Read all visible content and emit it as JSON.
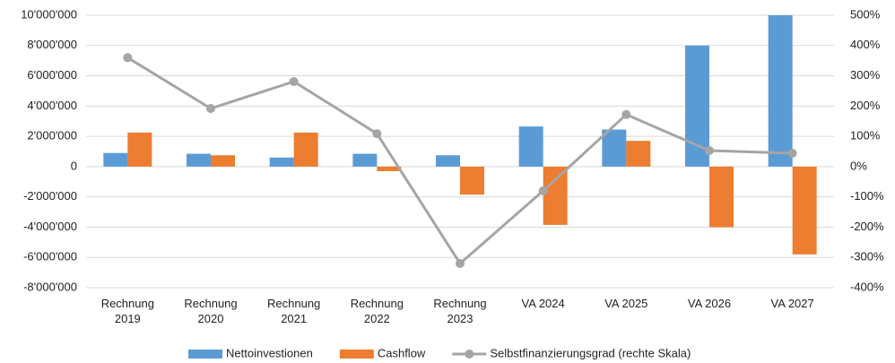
{
  "chart_data": {
    "type": "bar",
    "categories": [
      "Rechnung 2019",
      "Rechnung 2020",
      "Rechnung 2021",
      "Rechnung 2022",
      "Rechnung 2023",
      "VA 2024",
      "VA 2025",
      "VA 2026",
      "VA 2027"
    ],
    "series": [
      {
        "name": "Nettoinvestionen",
        "type": "bar",
        "color": "#5b9bd5",
        "values": [
          900000,
          850000,
          600000,
          850000,
          750000,
          2650000,
          2450000,
          8000000,
          10000000
        ]
      },
      {
        "name": "Cashflow",
        "type": "bar",
        "color": "#ed7d31",
        "values": [
          2250000,
          750000,
          2250000,
          -300000,
          -1850000,
          -3850000,
          1700000,
          -4000000,
          -5800000
        ]
      },
      {
        "name": "Selbstfinanzierungsgrad (rechte Skala)",
        "type": "line",
        "axis": "y2",
        "color": "#a5a5a5",
        "values": [
          360,
          192,
          281,
          109,
          -320,
          -80,
          172,
          53,
          44
        ]
      }
    ],
    "ylim": [
      -8000000,
      10000000
    ],
    "yticks": [
      {
        "value": -8000000,
        "label": "-8'000'000"
      },
      {
        "value": -6000000,
        "label": "-6'000'000"
      },
      {
        "value": -4000000,
        "label": "-4'000'000"
      },
      {
        "value": -2000000,
        "label": "-2'000'000"
      },
      0,
      {
        "value": 2000000,
        "label": "2'000'000"
      },
      {
        "value": 4000000,
        "label": "4'000'000"
      },
      {
        "value": 6000000,
        "label": "6'000'000"
      },
      {
        "value": 8000000,
        "label": "8'000'000"
      },
      {
        "value": 10000000,
        "label": "10'000'000"
      }
    ],
    "y2lim": [
      -400,
      500
    ],
    "y2ticks": [
      {
        "value": -400,
        "label": "-400%"
      },
      {
        "value": -300,
        "label": "-300%"
      },
      {
        "value": -200,
        "label": "-200%"
      },
      {
        "value": -100,
        "label": "-100%"
      },
      {
        "value": 0,
        "label": "0%"
      },
      {
        "value": 100,
        "label": "100%"
      },
      {
        "value": 200,
        "label": "200%"
      },
      {
        "value": 300,
        "label": "300%"
      },
      {
        "value": 400,
        "label": "400%"
      },
      {
        "value": 500,
        "label": "500%"
      }
    ],
    "grid": true,
    "legend": "bottom"
  }
}
